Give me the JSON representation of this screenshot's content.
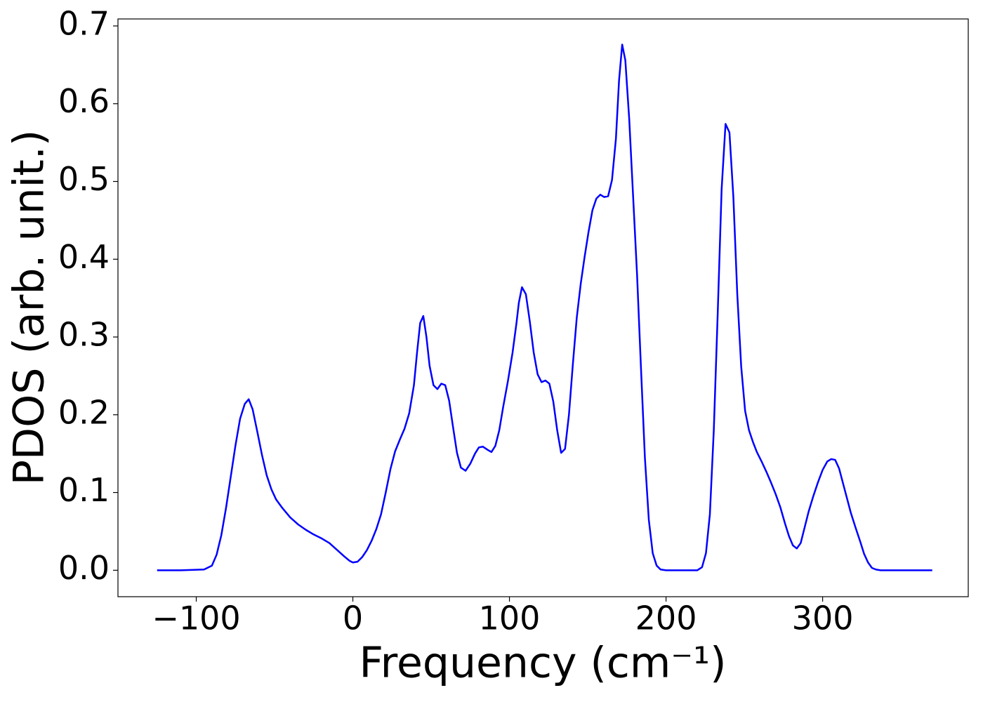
{
  "chart_data": {
    "type": "line",
    "x_label": "Frequency (cm⁻¹)",
    "y_label": "PDOS (arb. unit.)",
    "xlim": [
      -150,
      393
    ],
    "ylim": [
      -0.034,
      0.709
    ],
    "xticks": [
      {
        "value": -100,
        "label": "−100"
      },
      0,
      100,
      200,
      300
    ],
    "yticks": [
      {
        "value": 0,
        "label": "0.0"
      },
      0.1,
      0.2,
      0.3,
      0.4,
      0.5,
      0.6,
      0.7
    ],
    "grid": false,
    "series": [
      {
        "color": "#0000ff",
        "x": [
          -125,
          -110,
          -95,
          -90,
          -87,
          -84,
          -81,
          -78,
          -75,
          -72,
          -69,
          -66.5,
          -64,
          -61,
          -58,
          -55,
          -52,
          -49,
          -45,
          -40,
          -35,
          -30,
          -25,
          -20,
          -15,
          -10,
          -5,
          -2,
          0,
          3,
          6,
          9,
          12,
          15,
          18,
          21,
          24,
          27,
          30,
          33,
          36,
          39,
          41,
          43,
          45,
          47,
          49,
          51.5,
          54,
          56.5,
          59,
          61.5,
          64,
          66.5,
          69,
          72,
          75,
          78,
          80.5,
          83,
          86,
          88.5,
          91,
          93.5,
          96,
          99,
          102,
          104.5,
          106,
          108,
          110.5,
          113,
          115.5,
          118,
          120.5,
          123,
          125.5,
          128,
          130.5,
          133,
          135.5,
          138,
          140.5,
          143,
          145.5,
          148,
          150.5,
          153,
          155.5,
          158,
          160.5,
          163,
          165.5,
          168,
          170,
          172,
          174,
          176.5,
          179,
          181.5,
          184,
          186.5,
          189,
          191.5,
          194,
          196.5,
          200,
          220,
          223,
          225.5,
          228,
          230.5,
          233,
          235.5,
          238,
          240.5,
          243,
          245.5,
          248,
          250.5,
          253,
          255.5,
          258,
          261,
          264,
          267,
          270,
          273,
          276,
          278.5,
          281,
          283.5,
          286,
          288.5,
          291,
          294,
          297,
          300,
          303,
          305.5,
          308,
          310.5,
          313,
          315.5,
          318,
          321,
          324,
          326.5,
          329,
          331.5,
          334,
          337,
          370
        ],
        "values": [
          0,
          0,
          0.001,
          0.006,
          0.02,
          0.045,
          0.08,
          0.12,
          0.16,
          0.195,
          0.214,
          0.22,
          0.207,
          0.178,
          0.148,
          0.122,
          0.104,
          0.091,
          0.08,
          0.068,
          0.059,
          0.052,
          0.046,
          0.041,
          0.035,
          0.026,
          0.017,
          0.012,
          0.01,
          0.011,
          0.017,
          0.026,
          0.038,
          0.053,
          0.072,
          0.1,
          0.13,
          0.153,
          0.168,
          0.182,
          0.202,
          0.238,
          0.28,
          0.318,
          0.327,
          0.3,
          0.263,
          0.238,
          0.233,
          0.24,
          0.238,
          0.218,
          0.184,
          0.151,
          0.132,
          0.128,
          0.137,
          0.15,
          0.158,
          0.159,
          0.155,
          0.152,
          0.16,
          0.18,
          0.21,
          0.243,
          0.28,
          0.318,
          0.344,
          0.364,
          0.355,
          0.32,
          0.28,
          0.252,
          0.242,
          0.244,
          0.24,
          0.217,
          0.18,
          0.151,
          0.156,
          0.2,
          0.265,
          0.325,
          0.368,
          0.403,
          0.435,
          0.463,
          0.478,
          0.483,
          0.48,
          0.481,
          0.502,
          0.555,
          0.63,
          0.676,
          0.656,
          0.58,
          0.48,
          0.38,
          0.26,
          0.145,
          0.065,
          0.022,
          0.006,
          0.001,
          0,
          0,
          0.004,
          0.022,
          0.072,
          0.18,
          0.33,
          0.49,
          0.574,
          0.563,
          0.48,
          0.355,
          0.262,
          0.205,
          0.18,
          0.165,
          0.152,
          0.14,
          0.127,
          0.113,
          0.098,
          0.081,
          0.06,
          0.044,
          0.032,
          0.028,
          0.035,
          0.055,
          0.075,
          0.095,
          0.113,
          0.129,
          0.14,
          0.143,
          0.142,
          0.131,
          0.112,
          0.093,
          0.074,
          0.055,
          0.037,
          0.021,
          0.01,
          0.003,
          0.001,
          0,
          0
        ]
      }
    ]
  }
}
